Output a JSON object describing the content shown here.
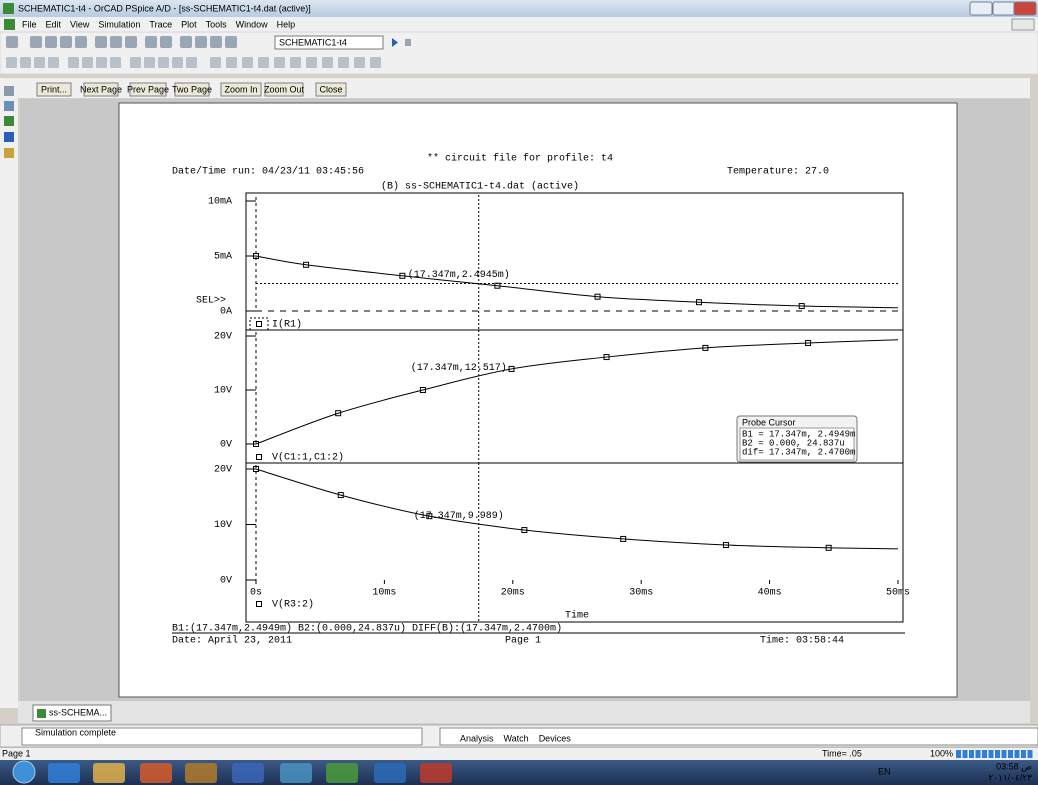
{
  "app": {
    "title": "SCHEMATIC1-t4 - OrCAD PSpice A/D  - [ss-SCHEMATIC1-t4.dat (active)]",
    "menus": [
      "File",
      "Edit",
      "View",
      "Simulation",
      "Trace",
      "Plot",
      "Tools",
      "Window",
      "Help"
    ],
    "profile": "SCHEMATIC1-t4",
    "preview_buttons": [
      "Print...",
      "Next Page",
      "Prev Page",
      "Two Page",
      "Zoom In",
      "Zoom Out",
      "Close"
    ],
    "page_header": "** circuit file for profile: t4",
    "run_info": "Date/Time run: 04/23/11 03:45:56",
    "temperature": "Temperature: 27.0",
    "file_label": "(B) ss-SCHEMATIC1-t4.dat (active)",
    "sel": "SEL>>",
    "cursor_summary": "B1:(17.347m,2.4949m)  B2:(0.000,24.837u)  DIFF(B):(17.347m,2.4700m)",
    "footer_date": "Date: April 23, 2011",
    "footer_page": "Page 1",
    "footer_time": "Time: 03:58:44",
    "probe_cursor": {
      "title": "Probe Cursor",
      "rows": [
        "B1 =  17.347m,   2.4949m",
        "B2 =    0.000,   24.837u",
        "dif=  17.347m,   2.4700m"
      ]
    },
    "doc_tab": "ss-SCHEMA...",
    "output": "Simulation complete",
    "output_tabs": [
      "Analysis",
      "Watch",
      "Devices"
    ],
    "status": {
      "page": "Page 1",
      "time": "Time= .05",
      "zoom": "100%"
    },
    "tray": {
      "lang": "EN",
      "clock": "03:58 ص",
      "date": "٢٠١١/٠٤/٢٣"
    }
  },
  "chart_data": [
    {
      "type": "line",
      "xlim": [
        0,
        50
      ],
      "ylim": [
        0,
        10
      ],
      "yticks": [
        {
          "value": 0,
          "label": "0A"
        },
        {
          "value": 5,
          "label": "5mA"
        },
        {
          "value": 10,
          "label": "10mA"
        }
      ],
      "x": [
        0,
        3.9,
        11.4,
        18.8,
        26.6,
        34.5,
        42.5,
        50
      ],
      "series": [
        {
          "name": "I(R1)",
          "color": "#000000",
          "values": [
            5.0,
            4.2,
            3.2,
            2.3,
            1.3,
            0.8,
            0.45,
            0.3
          ]
        }
      ],
      "cursor": {
        "x": 17.347,
        "y": 2.4945,
        "label": "(17.347m,2.4945m)"
      }
    },
    {
      "type": "line",
      "xlim": [
        0,
        50
      ],
      "ylim": [
        0,
        20
      ],
      "yticks": [
        {
          "value": 0,
          "label": "0V"
        },
        {
          "value": 10,
          "label": "10V"
        },
        {
          "value": 20,
          "label": "20V"
        }
      ],
      "x": [
        0,
        6.4,
        13.0,
        19.9,
        27.3,
        35.0,
        43.0,
        50
      ],
      "series": [
        {
          "name": "V(C1:1,C1:2)",
          "color": "#000000",
          "values": [
            0,
            5.7,
            10.0,
            13.9,
            16.1,
            17.8,
            18.7,
            19.3
          ]
        }
      ],
      "cursor": {
        "x": 17.347,
        "y": 12.517,
        "label": "(17.347m,12.517)"
      }
    },
    {
      "type": "line",
      "xlim": [
        0,
        50
      ],
      "ylim": [
        0,
        20
      ],
      "xlabel": "Time",
      "xticks": [
        {
          "value": 0,
          "label": "0s"
        },
        {
          "value": 10,
          "label": "10ms"
        },
        {
          "value": 20,
          "label": "20ms"
        },
        {
          "value": 30,
          "label": "30ms"
        },
        {
          "value": 40,
          "label": "40ms"
        },
        {
          "value": 50,
          "label": "50ms"
        }
      ],
      "yticks": [
        {
          "value": 0,
          "label": "0V"
        },
        {
          "value": 10,
          "label": "10V"
        },
        {
          "value": 20,
          "label": "20V"
        }
      ],
      "x": [
        0,
        6.6,
        13.5,
        20.9,
        28.6,
        36.6,
        44.6,
        50
      ],
      "series": [
        {
          "name": "V(R3:2)",
          "color": "#000000",
          "values": [
            20,
            15.3,
            11.5,
            9.0,
            7.4,
            6.3,
            5.8,
            5.6
          ]
        }
      ],
      "cursor": {
        "x": 17.347,
        "y": 9.989,
        "label": "(17.347m,9.989)"
      }
    }
  ]
}
